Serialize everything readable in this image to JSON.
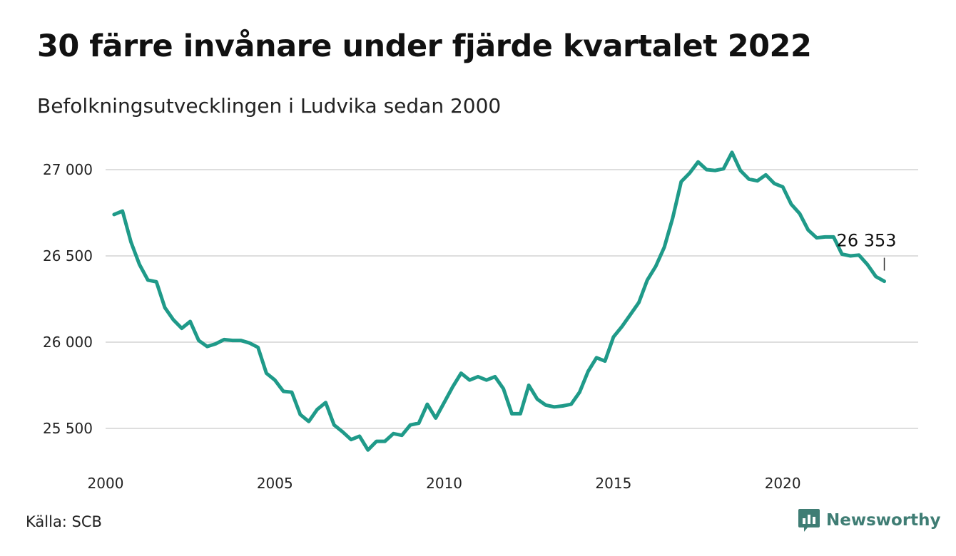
{
  "title": "30 färre invånare under fjärde kvartalet 2022",
  "subtitle": "Befolkningsutvecklingen i Ludvika sedan 2000",
  "source": "Källa: SCB",
  "brand": {
    "name": "Newsworthy",
    "icon": "newsworthy-logo-icon",
    "color": "#3f7d74"
  },
  "chart_data": {
    "type": "line",
    "color": "#1f9a89",
    "grid": true,
    "ylim": [
      25300,
      27150
    ],
    "xlim": [
      2000,
      2024
    ],
    "yticks": [
      25500,
      26000,
      26500,
      27000
    ],
    "ytick_labels": [
      "25 500",
      "26 000",
      "26 500",
      "27 000"
    ],
    "xticks": [
      2000,
      2005,
      2010,
      2015,
      2020
    ],
    "xtick_labels": [
      "2000",
      "2005",
      "2010",
      "2015",
      "2020"
    ],
    "annotation": {
      "x": 2023.0,
      "y": 26353,
      "label": "26 353"
    },
    "x": [
      2000.25,
      2000.5,
      2000.75,
      2001.0,
      2001.25,
      2001.5,
      2001.75,
      2002.0,
      2002.25,
      2002.5,
      2002.75,
      2003.0,
      2003.25,
      2003.5,
      2003.75,
      2004.0,
      2004.25,
      2004.5,
      2004.75,
      2005.0,
      2005.25,
      2005.5,
      2005.75,
      2006.0,
      2006.25,
      2006.5,
      2006.75,
      2007.0,
      2007.25,
      2007.5,
      2007.75,
      2008.0,
      2008.25,
      2008.5,
      2008.75,
      2009.0,
      2009.25,
      2009.5,
      2009.75,
      2010.0,
      2010.25,
      2010.5,
      2010.75,
      2011.0,
      2011.25,
      2011.5,
      2011.75,
      2012.0,
      2012.25,
      2012.5,
      2012.75,
      2013.0,
      2013.25,
      2013.5,
      2013.75,
      2014.0,
      2014.25,
      2014.5,
      2014.75,
      2015.0,
      2015.25,
      2015.5,
      2015.75,
      2016.0,
      2016.25,
      2016.5,
      2016.75,
      2017.0,
      2017.25,
      2017.5,
      2017.75,
      2018.0,
      2018.25,
      2018.5,
      2018.75,
      2019.0,
      2019.25,
      2019.5,
      2019.75,
      2020.0,
      2020.25,
      2020.5,
      2020.75,
      2021.0,
      2021.25,
      2021.5,
      2021.75,
      2022.0,
      2022.25,
      2022.5,
      2022.75,
      2023.0
    ],
    "values": [
      26740,
      26760,
      26580,
      26450,
      26360,
      26350,
      26200,
      26130,
      26080,
      26120,
      26010,
      25975,
      25990,
      26015,
      26010,
      26010,
      25995,
      25970,
      25820,
      25780,
      25715,
      25710,
      25580,
      25540,
      25610,
      25650,
      25520,
      25480,
      25435,
      25455,
      25375,
      25425,
      25425,
      25470,
      25460,
      25520,
      25530,
      25640,
      25560,
      25650,
      25740,
      25820,
      25780,
      25800,
      25780,
      25800,
      25730,
      25585,
      25585,
      25750,
      25670,
      25635,
      25625,
      25630,
      25640,
      25710,
      25830,
      25910,
      25890,
      26030,
      26090,
      26160,
      26230,
      26360,
      26440,
      26550,
      26720,
      26930,
      26980,
      27045,
      27000,
      26995,
      27005,
      27100,
      26995,
      26945,
      26935,
      26970,
      26920,
      26900,
      26800,
      26745,
      26650,
      26605,
      26610,
      26610,
      26510,
      26500,
      26505,
      26450,
      26380,
      26353
    ]
  }
}
